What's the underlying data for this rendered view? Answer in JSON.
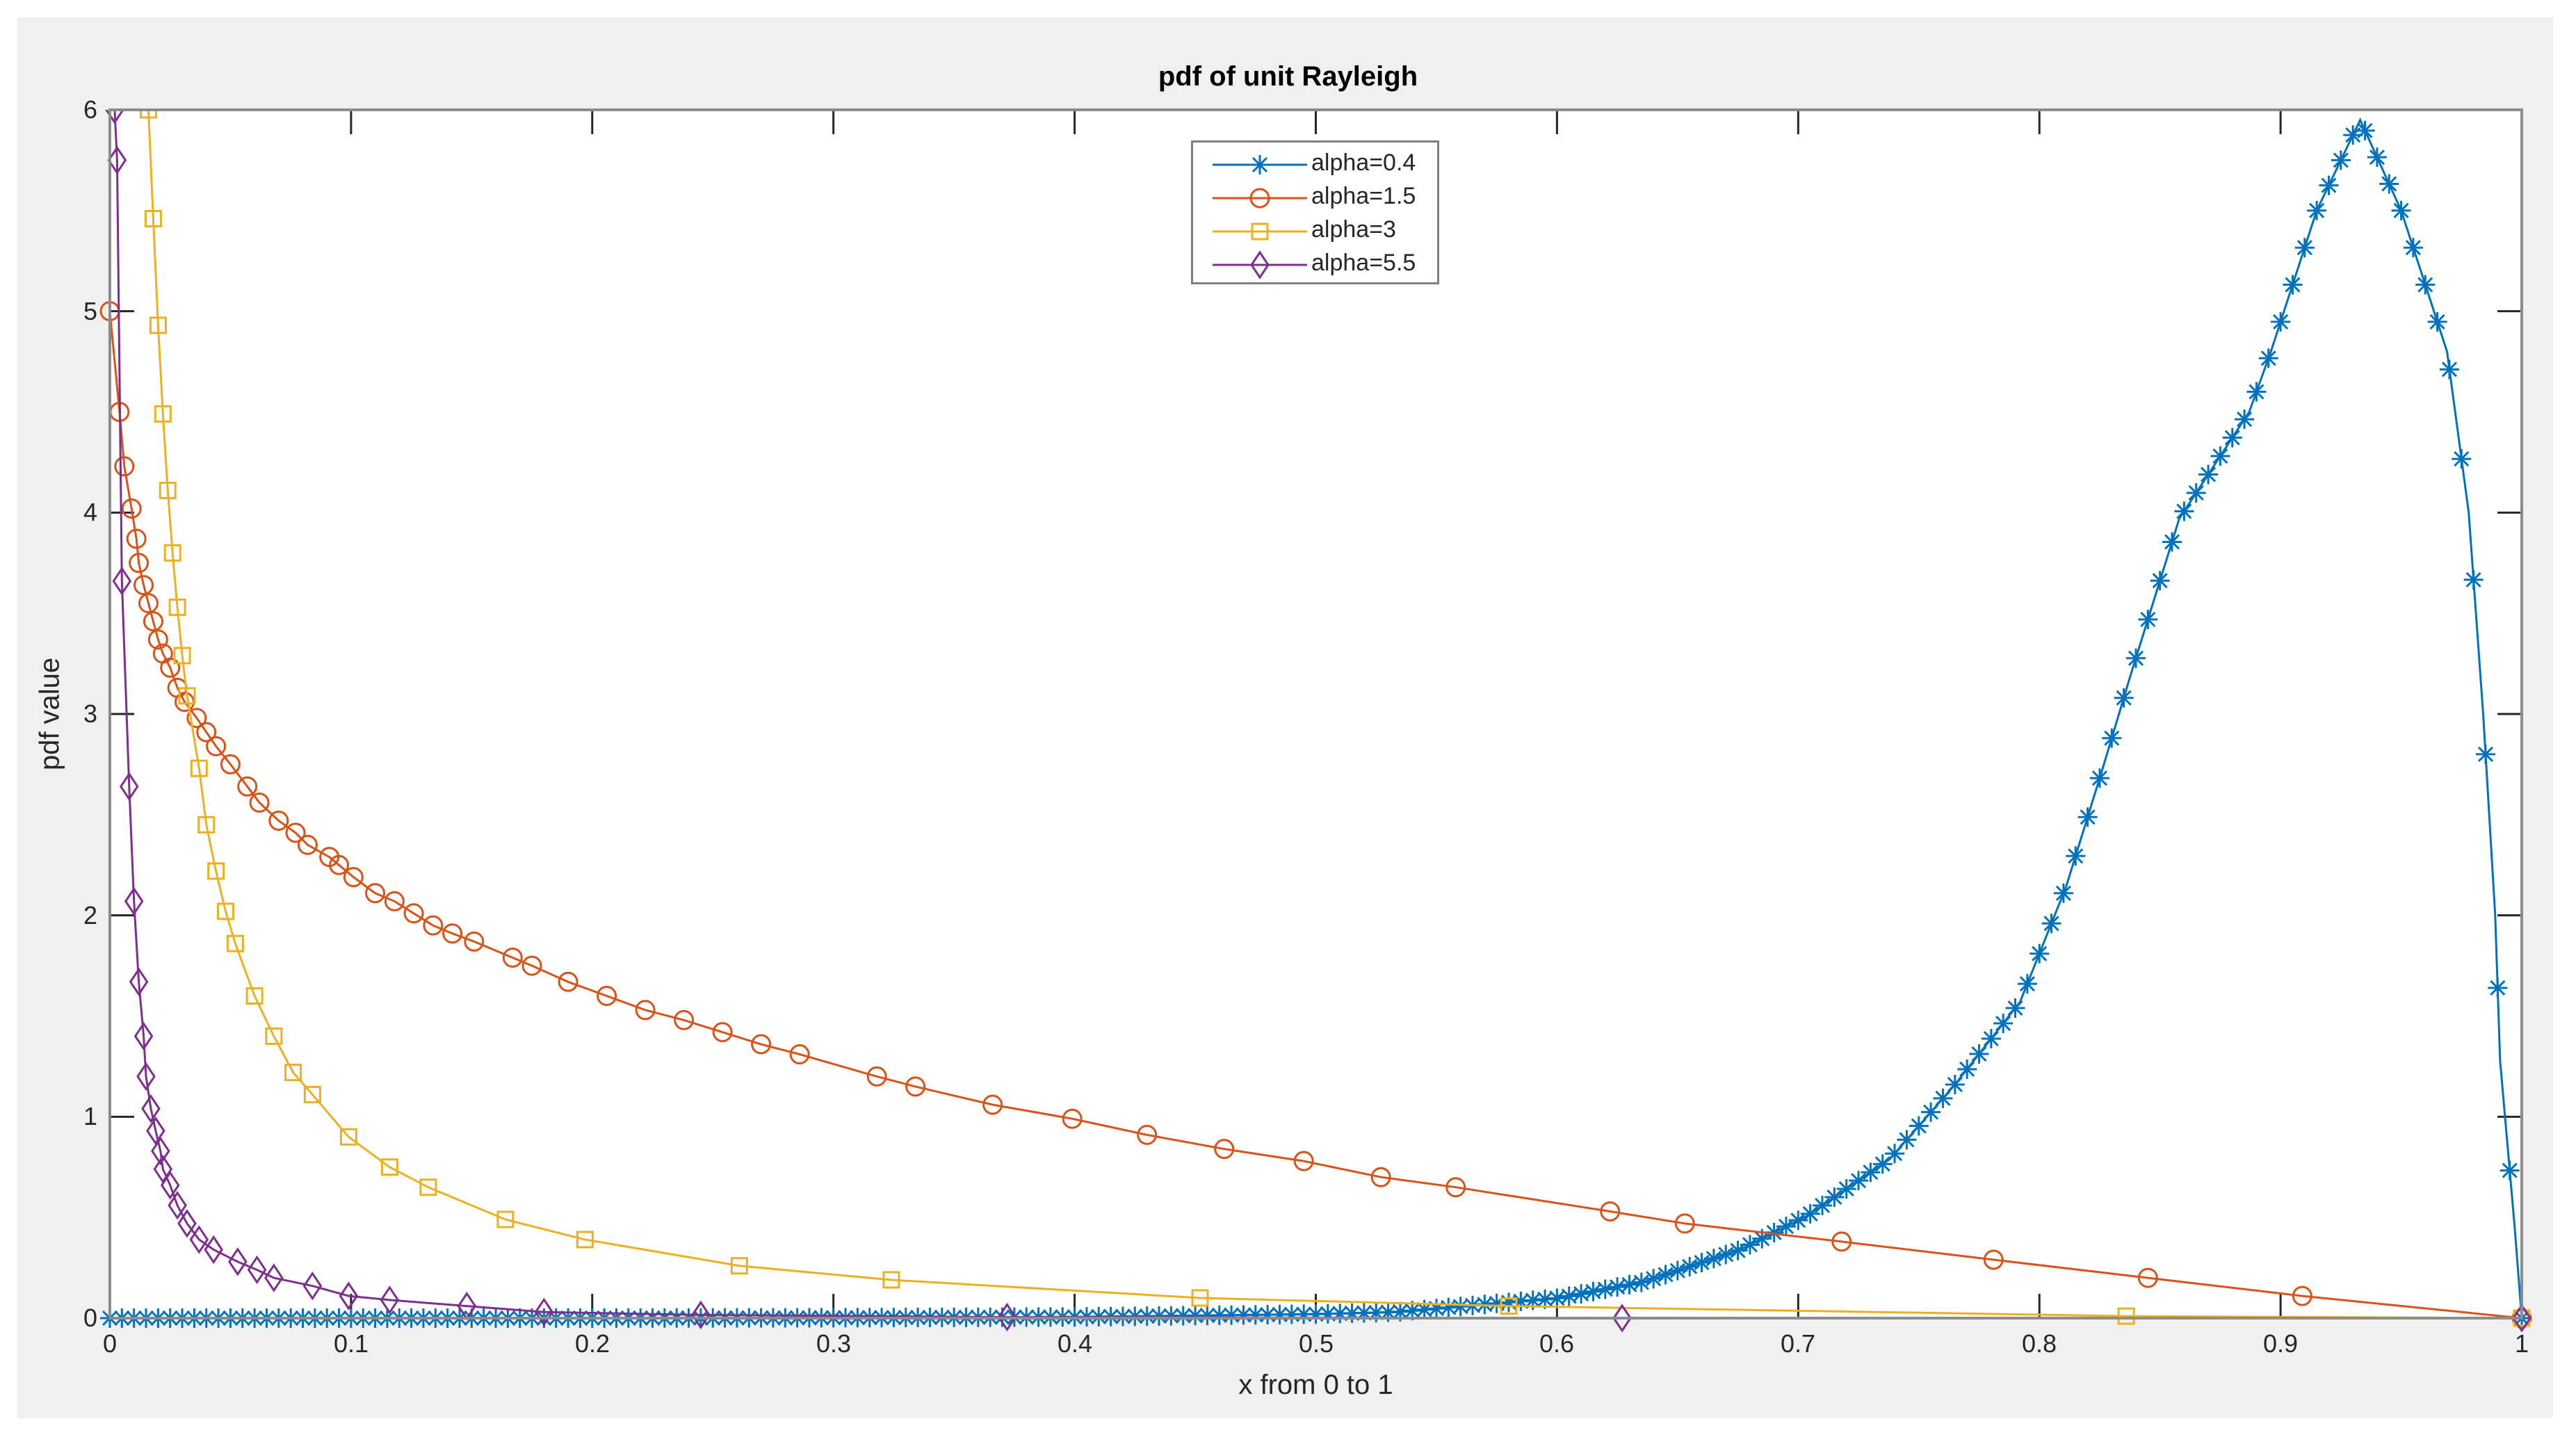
{
  "chart_data": {
    "type": "line",
    "title": "pdf of unit Rayleigh",
    "xlabel": "x from 0 to 1",
    "ylabel": "pdf value",
    "xlim": [
      0,
      1
    ],
    "ylim": [
      0,
      6
    ],
    "grid": false,
    "legend_position": "top-center",
    "x_ticks": [
      "0",
      "0.1",
      "0.2",
      "0.3",
      "0.4",
      "0.5",
      "0.6",
      "0.7",
      "0.8",
      "0.9",
      "1"
    ],
    "y_ticks": [
      "0",
      "1",
      "2",
      "3",
      "4",
      "5",
      "6"
    ],
    "series": [
      {
        "name": "alpha=0.4",
        "color": "#0072BD",
        "marker": "asterisk",
        "x": [
          0,
          0.1,
          0.2,
          0.3,
          0.4,
          0.431,
          0.5,
          0.533,
          0.601,
          0.636,
          0.676,
          0.704,
          0.738,
          0.765,
          0.792,
          0.811,
          0.826,
          0.838,
          0.858,
          0.887,
          0.896,
          0.915,
          0.933,
          0.95,
          0.969,
          0.978,
          0.984,
          0.989,
          0.991,
          0.997,
          1
        ],
        "values": [
          0,
          0,
          0,
          0.002,
          0.006,
          0.01,
          0.02,
          0.03,
          0.1,
          0.18,
          0.34,
          0.51,
          0.79,
          1.16,
          1.57,
          2.14,
          2.72,
          3.2,
          3.97,
          4.5,
          4.8,
          5.5,
          5.95,
          5.5,
          4.8,
          4.0,
          3.0,
          2.0,
          1.28,
          0.46,
          0
        ]
      },
      {
        "name": "alpha=1.5",
        "color": "#D95319",
        "marker": "circle",
        "x": [
          0,
          0.004,
          0.006,
          0.009,
          0.011,
          0.012,
          0.014,
          0.016,
          0.018,
          0.02,
          0.022,
          0.025,
          0.028,
          0.031,
          0.036,
          0.04,
          0.044,
          0.05,
          0.057,
          0.062,
          0.07,
          0.077,
          0.082,
          0.091,
          0.095,
          0.101,
          0.11,
          0.118,
          0.126,
          0.134,
          0.142,
          0.151,
          0.167,
          0.175,
          0.19,
          0.206,
          0.222,
          0.238,
          0.254,
          0.27,
          0.286,
          0.318,
          0.334,
          0.366,
          0.399,
          0.43,
          0.462,
          0.495,
          0.527,
          0.558,
          0.622,
          0.653,
          0.718,
          0.781,
          0.845,
          0.909,
          1
        ],
        "values": [
          5.0,
          4.5,
          4.23,
          4.02,
          3.87,
          3.75,
          3.64,
          3.55,
          3.46,
          3.37,
          3.3,
          3.23,
          3.13,
          3.06,
          2.98,
          2.91,
          2.84,
          2.75,
          2.64,
          2.56,
          2.47,
          2.41,
          2.35,
          2.29,
          2.25,
          2.19,
          2.11,
          2.07,
          2.01,
          1.95,
          1.91,
          1.87,
          1.79,
          1.75,
          1.67,
          1.6,
          1.53,
          1.48,
          1.42,
          1.36,
          1.31,
          1.2,
          1.15,
          1.06,
          0.99,
          0.91,
          0.84,
          0.78,
          0.7,
          0.65,
          0.53,
          0.47,
          0.38,
          0.29,
          0.2,
          0.11,
          0
        ]
      },
      {
        "name": "alpha=3",
        "color": "#EDB120",
        "marker": "square",
        "x": [
          0.016,
          0.018,
          0.02,
          0.022,
          0.024,
          0.026,
          0.028,
          0.03,
          0.032,
          0.037,
          0.04,
          0.044,
          0.048,
          0.052,
          0.06,
          0.068,
          0.076,
          0.084,
          0.099,
          0.116,
          0.132,
          0.164,
          0.197,
          0.261,
          0.324,
          0.452,
          0.58,
          0.836,
          1
        ],
        "values": [
          6.0,
          5.46,
          4.93,
          4.49,
          4.11,
          3.8,
          3.53,
          3.29,
          3.09,
          2.73,
          2.45,
          2.22,
          2.02,
          1.86,
          1.6,
          1.4,
          1.22,
          1.11,
          0.9,
          0.75,
          0.65,
          0.49,
          0.39,
          0.26,
          0.19,
          0.1,
          0.06,
          0.01,
          0
        ]
      },
      {
        "name": "alpha=5.5",
        "color": "#7E2F8E",
        "marker": "diamond",
        "x": [
          0.002,
          0.003,
          0.005,
          0.008,
          0.01,
          0.012,
          0.014,
          0.015,
          0.017,
          0.019,
          0.021,
          0.022,
          0.025,
          0.028,
          0.032,
          0.037,
          0.043,
          0.053,
          0.061,
          0.068,
          0.084,
          0.099,
          0.116,
          0.148,
          0.18,
          0.245,
          0.372,
          0.627,
          1
        ],
        "values": [
          6.0,
          5.75,
          3.66,
          2.64,
          2.07,
          1.67,
          1.4,
          1.2,
          1.04,
          0.93,
          0.83,
          0.74,
          0.66,
          0.56,
          0.47,
          0.39,
          0.34,
          0.28,
          0.24,
          0.2,
          0.16,
          0.11,
          0.09,
          0.06,
          0.03,
          0.016,
          0.005,
          0,
          0
        ]
      }
    ]
  },
  "colors": {
    "figure_background": "#f0f0f0",
    "axes_background": "#ffffff",
    "axes_edge": "#8c8c8c",
    "text": "#262626"
  }
}
